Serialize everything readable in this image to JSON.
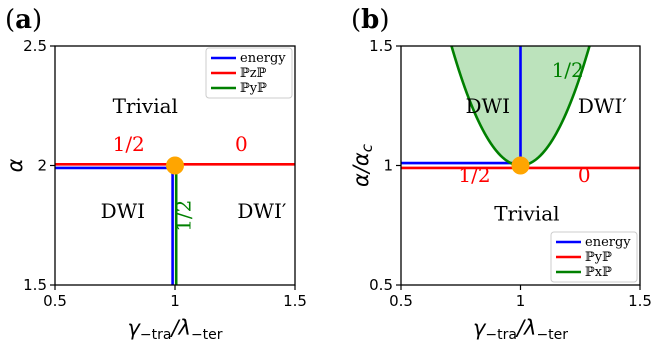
{
  "colors": {
    "energy": "#0000ff",
    "red": "#ff0000",
    "green": "#008000",
    "fill": "#90d090",
    "dot": "#ffa500"
  },
  "chart_data": [
    {
      "type": "line",
      "panel_label": "(a)",
      "xlabel": "γ−tra/λ−ter",
      "ylabel": "α",
      "xlim": [
        0.5,
        1.5
      ],
      "ylim": [
        1.5,
        2.5
      ],
      "xticks": [
        0.5,
        1,
        1.5
      ],
      "xtick_labels": [
        "0.5",
        "1",
        "1.5"
      ],
      "yticks": [
        1.5,
        2,
        2.5
      ],
      "ytick_labels": [
        "1.5",
        "2",
        "2.5"
      ],
      "legend": {
        "position": "top-right",
        "entries": [
          "energy",
          "ℙzℙ",
          "ℙyℙ"
        ]
      },
      "series": [
        {
          "name": "energy",
          "color": "energy",
          "points": [
            [
              0.5,
              1.99
            ],
            [
              0.99,
              1.99
            ],
            [
              0.99,
              1.5
            ]
          ]
        },
        {
          "name": "ℙzℙ",
          "color": "red",
          "points": [
            [
              0.5,
              2.005
            ],
            [
              1.5,
              2.005
            ]
          ]
        },
        {
          "name": "ℙyℙ",
          "color": "green",
          "points": [
            [
              1.005,
              2.0
            ],
            [
              1.005,
              1.5
            ]
          ]
        }
      ],
      "marker": {
        "x": 1.0,
        "y": 2.0
      },
      "regions": [
        {
          "text": "Trivial",
          "x": 0.74,
          "y": 2.22
        },
        {
          "text": "DWI",
          "x": 0.69,
          "y": 1.78
        },
        {
          "text": "DWI′",
          "x": 1.26,
          "y": 1.78
        }
      ],
      "annotations": [
        {
          "text": "1/2",
          "x": 0.74,
          "y": 2.06,
          "color": "red",
          "rotate": 0
        },
        {
          "text": "0",
          "x": 1.25,
          "y": 2.06,
          "color": "red",
          "rotate": 0
        },
        {
          "text": "1/2",
          "x": 1.065,
          "y": 1.79,
          "color": "green",
          "rotate": -90
        }
      ]
    },
    {
      "type": "line",
      "panel_label": "(b)",
      "xlabel": "γ−tra/λ−ter",
      "ylabel": "α/αc",
      "xlim": [
        0.5,
        1.5
      ],
      "ylim": [
        0.5,
        1.5
      ],
      "xticks": [
        0.5,
        1,
        1.5
      ],
      "xtick_labels": [
        "0.5",
        "1",
        "1.5"
      ],
      "yticks": [
        0.5,
        1,
        1.5
      ],
      "ytick_labels": [
        "0.5",
        "1",
        "1.5"
      ],
      "legend": {
        "position": "bottom-right",
        "entries": [
          "energy",
          "ℙyℙ",
          "ℙxℙ"
        ]
      },
      "series": [
        {
          "name": "energy",
          "color": "energy",
          "points": [
            [
              0.5,
              1.01
            ],
            [
              1.0,
              1.01
            ],
            [
              1.0,
              1.5
            ]
          ]
        },
        {
          "name": "ℙyℙ",
          "color": "red",
          "points": [
            [
              0.5,
              0.99
            ],
            [
              1.5,
              0.99
            ]
          ]
        },
        {
          "name": "ℙxℙ",
          "color": "green",
          "parabola": {
            "vertex": [
              1.0,
              1.0
            ],
            "k": 6.0,
            "xmin": 0.5,
            "xmax": 1.5
          }
        }
      ],
      "marker": {
        "x": 1.0,
        "y": 1.0
      },
      "regions": [
        {
          "text": "DWI",
          "x": 0.77,
          "y": 1.22
        },
        {
          "text": "DWI′",
          "x": 1.24,
          "y": 1.22
        },
        {
          "text": "Trivial",
          "x": 0.89,
          "y": 0.77
        }
      ],
      "annotations": [
        {
          "text": "1/2",
          "x": 1.13,
          "y": 1.37,
          "color": "green",
          "rotate": 0
        },
        {
          "text": "1/2",
          "x": 0.74,
          "y": 0.93,
          "color": "red",
          "rotate": 0
        },
        {
          "text": "0",
          "x": 1.24,
          "y": 0.93,
          "color": "red",
          "rotate": 0
        }
      ]
    }
  ]
}
